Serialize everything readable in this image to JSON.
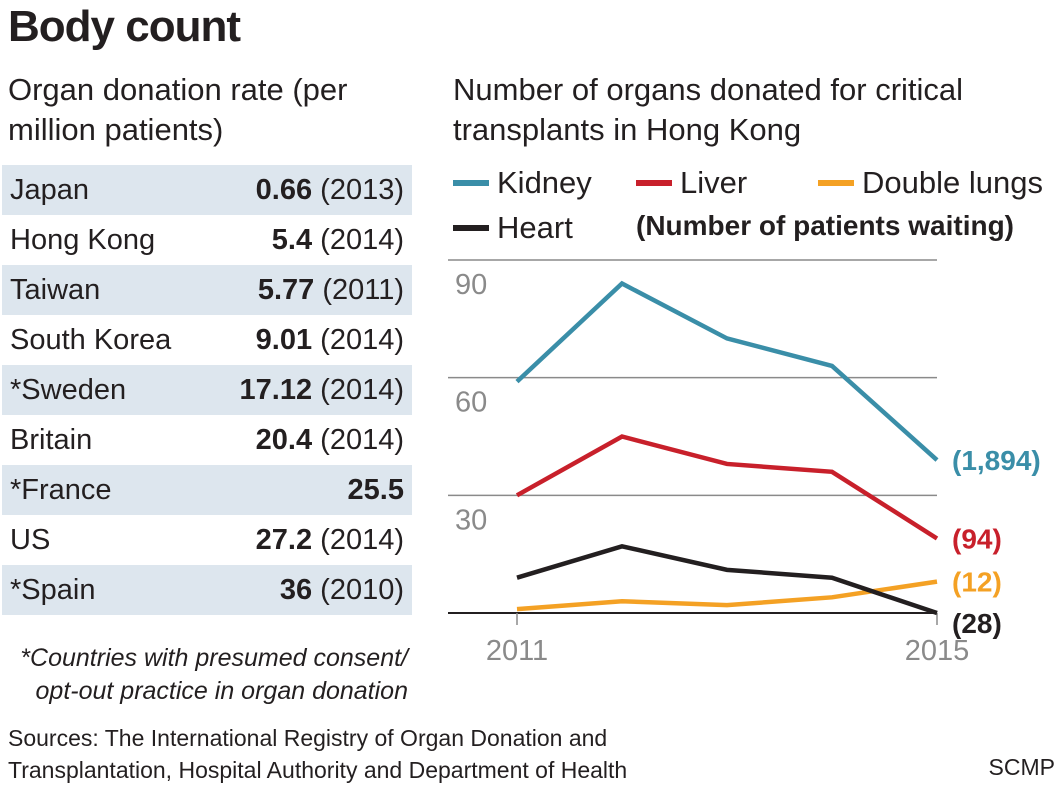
{
  "title": "Body count",
  "left_subtitle": "Organ donation rate (per million patients)",
  "rates": [
    {
      "country": "Japan",
      "value": "0.66",
      "year": " (2013)"
    },
    {
      "country": "Hong Kong",
      "value": "5.4",
      "year": " (2014)"
    },
    {
      "country": "Taiwan",
      "value": "5.77",
      "year": " (2011)"
    },
    {
      "country": "South Korea",
      "value": "9.01",
      "year": " (2014)"
    },
    {
      "country": "*Sweden",
      "value": "17.12",
      "year": " (2014)"
    },
    {
      "country": "Britain",
      "value": "20.4",
      "year": " (2014)"
    },
    {
      "country": "*France",
      "value": "25.5",
      "year": ""
    },
    {
      "country": "US",
      "value": "27.2",
      "year": " (2014)"
    },
    {
      "country": "*Spain",
      "value": "36",
      "year": " (2010)"
    }
  ],
  "footnote": "*Countries with presumed consent/ opt-out practice in organ donation",
  "sources": "Sources: The International Registry of Organ Donation and Transplantation, Hospital Authority and Department of Health",
  "credit": "SCMP",
  "legend_waiting_label": "(Number of patients waiting)",
  "colors": {
    "kidney": "#3a8ea8",
    "liver": "#c8202b",
    "double_lungs": "#f4a124",
    "heart": "#231f20",
    "grid": "#8a8a8a",
    "tick_text": "#8a8a8a",
    "row_shade": "#dde6ee"
  },
  "chart_data": {
    "type": "line",
    "title": "Number of organs donated for critical transplants in Hong Kong",
    "x": [
      2011,
      2012,
      2013,
      2014,
      2015
    ],
    "x_tick_labels": [
      "2011",
      "2015"
    ],
    "y_ticks": [
      30,
      60,
      90
    ],
    "ylim": [
      0,
      90
    ],
    "series": [
      {
        "name": "Kidney",
        "color_key": "kidney",
        "values": [
          59,
          84,
          70,
          63,
          39
        ],
        "end_label": "(1,894)"
      },
      {
        "name": "Liver",
        "color_key": "liver",
        "values": [
          30,
          45,
          38,
          36,
          19
        ],
        "end_label": "(94)"
      },
      {
        "name": "Double lungs",
        "color_key": "double_lungs",
        "values": [
          1,
          3,
          2,
          4,
          8
        ],
        "end_label": "(12)"
      },
      {
        "name": "Heart",
        "color_key": "heart",
        "values": [
          9,
          17,
          11,
          9,
          0
        ],
        "end_label": "(28)"
      }
    ]
  }
}
